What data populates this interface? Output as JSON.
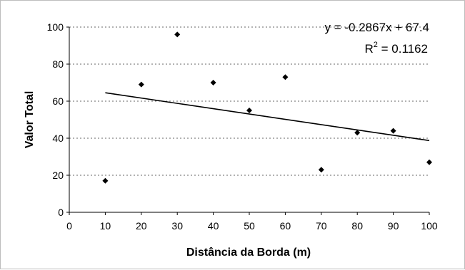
{
  "chart_data": {
    "type": "scatter",
    "title": "",
    "xlabel": "Distância da Borda (m)",
    "ylabel": "Valor Total",
    "xlim": [
      0,
      100
    ],
    "ylim": [
      0,
      100
    ],
    "x_ticks": [
      "0",
      "10",
      "20",
      "30",
      "40",
      "50",
      "60",
      "70",
      "80",
      "90",
      "100"
    ],
    "y_ticks": [
      "0",
      "20",
      "40",
      "60",
      "80",
      "100"
    ],
    "grid": "horizontal dotted",
    "legend": "none",
    "series": [
      {
        "marker": "diamond",
        "color": "#000000",
        "points": [
          {
            "x": 10,
            "y": 17
          },
          {
            "x": 20,
            "y": 69
          },
          {
            "x": 30,
            "y": 96
          },
          {
            "x": 40,
            "y": 70
          },
          {
            "x": 50,
            "y": 55
          },
          {
            "x": 60,
            "y": 73
          },
          {
            "x": 70,
            "y": 23
          },
          {
            "x": 80,
            "y": 43
          },
          {
            "x": 90,
            "y": 44
          },
          {
            "x": 100,
            "y": 27
          }
        ]
      }
    ],
    "trendline": {
      "type": "linear",
      "slope": -0.2867,
      "intercept": 67.4,
      "x_range": [
        10,
        100
      ],
      "equation_text": "y = -0.2867x + 67.4",
      "r2_prefix": "R",
      "r2_superscript": "2",
      "r2_value_text": " = 0.1162"
    }
  }
}
